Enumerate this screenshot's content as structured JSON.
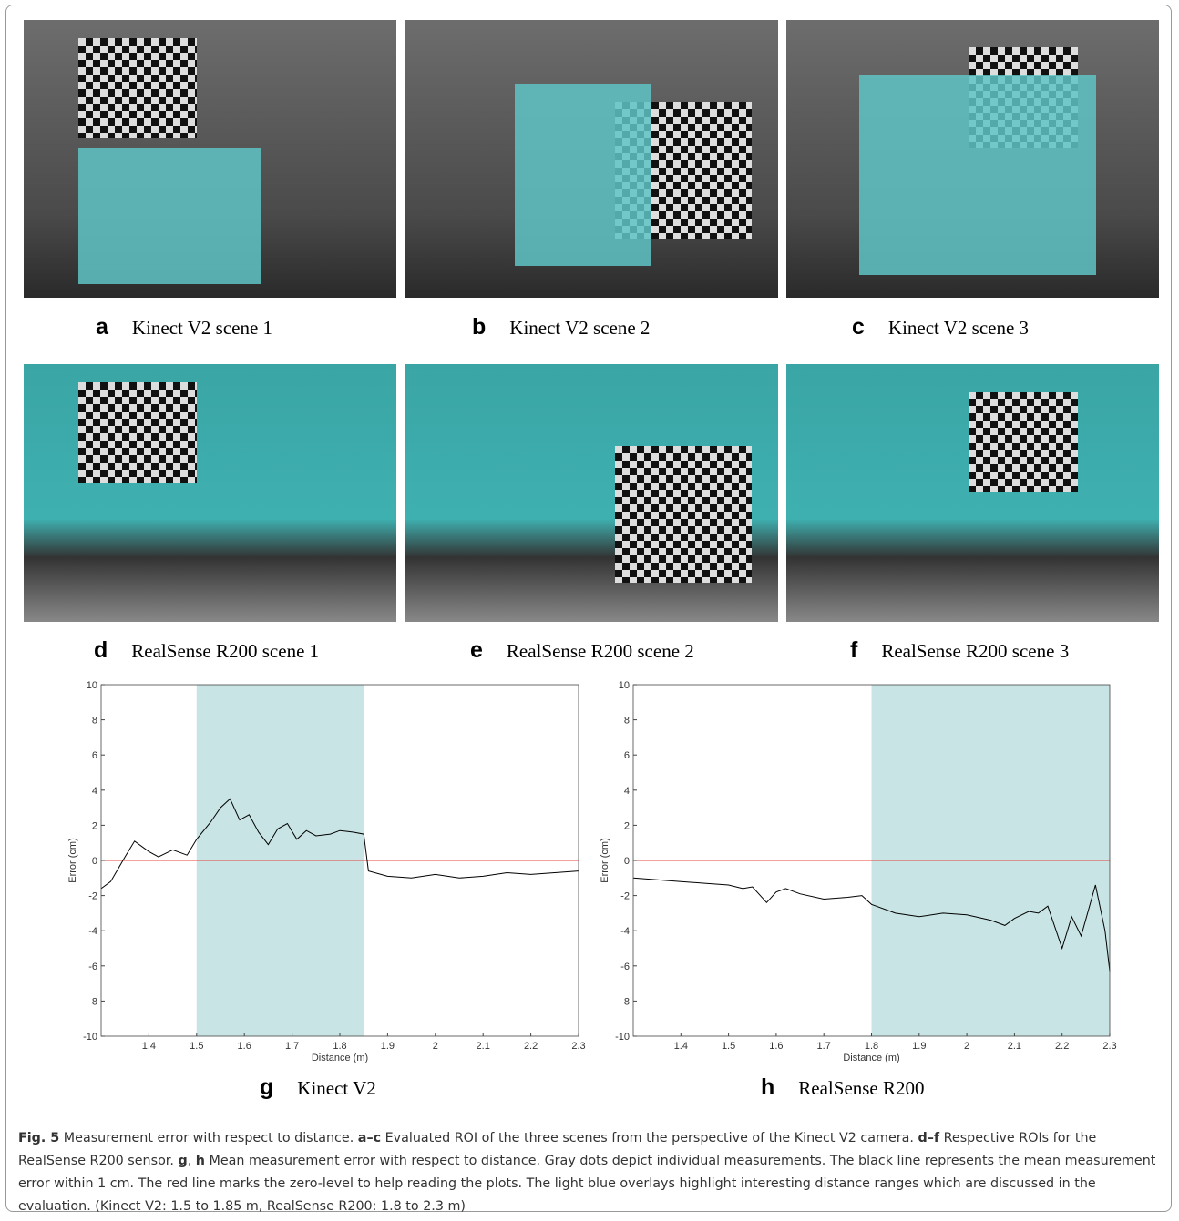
{
  "panels": [
    {
      "letter": "a",
      "label": "Kinect V2 scene 1"
    },
    {
      "letter": "b",
      "label": "Kinect V2 scene 2"
    },
    {
      "letter": "c",
      "label": "Kinect V2 scene 3"
    },
    {
      "letter": "d",
      "label": "RealSense R200 scene 1"
    },
    {
      "letter": "e",
      "label": "RealSense R200 scene 2"
    },
    {
      "letter": "f",
      "label": "RealSense R200 scene 3"
    },
    {
      "letter": "g",
      "label": "Kinect V2"
    },
    {
      "letter": "h",
      "label": "RealSense R200"
    }
  ],
  "chart_data": [
    {
      "type": "line",
      "x_label": "Distance (m)",
      "y_label": "Error (cm)",
      "color": "#000000",
      "x": [
        1.3,
        1.32,
        1.35,
        1.37,
        1.4,
        1.42,
        1.45,
        1.48,
        1.5,
        1.53,
        1.55,
        1.57,
        1.59,
        1.61,
        1.63,
        1.65,
        1.67,
        1.69,
        1.71,
        1.73,
        1.75,
        1.78,
        1.8,
        1.83,
        1.85,
        1.86,
        1.9,
        1.95,
        2.0,
        2.05,
        2.1,
        2.15,
        2.2,
        2.25,
        2.3
      ],
      "values": [
        -1.6,
        -1.2,
        0.2,
        1.1,
        0.5,
        0.2,
        0.6,
        0.3,
        1.2,
        2.2,
        3.0,
        3.5,
        2.3,
        2.6,
        1.6,
        0.9,
        1.8,
        2.1,
        1.2,
        1.7,
        1.4,
        1.5,
        1.7,
        1.6,
        1.5,
        -0.6,
        -0.9,
        -1.0,
        -0.8,
        -1.0,
        -0.9,
        -0.7,
        -0.8,
        -0.7,
        -0.6
      ],
      "xlim": [
        1.3,
        2.3
      ],
      "ylim": [
        -10,
        10
      ],
      "xticks": [
        1.4,
        1.5,
        1.6,
        1.7,
        1.8,
        1.9,
        2,
        2.1,
        2.2,
        2.3
      ],
      "yticks": [
        -10,
        -8,
        -6,
        -4,
        -2,
        0,
        2,
        4,
        6,
        8,
        10
      ],
      "highlight": [
        1.5,
        1.85
      ],
      "highlight_color": "#c8e4e4",
      "zero_line": 0,
      "zero_line_color": "#e8403a"
    },
    {
      "type": "line",
      "x_label": "Distance (m)",
      "y_label": "Error (cm)",
      "color": "#000000",
      "x": [
        1.3,
        1.35,
        1.4,
        1.45,
        1.5,
        1.53,
        1.55,
        1.58,
        1.6,
        1.62,
        1.65,
        1.7,
        1.75,
        1.78,
        1.8,
        1.85,
        1.9,
        1.95,
        2.0,
        2.05,
        2.08,
        2.1,
        2.13,
        2.15,
        2.17,
        2.2,
        2.22,
        2.24,
        2.27,
        2.29,
        2.3
      ],
      "values": [
        -1.0,
        -1.1,
        -1.2,
        -1.3,
        -1.4,
        -1.6,
        -1.5,
        -2.4,
        -1.8,
        -1.6,
        -1.9,
        -2.2,
        -2.1,
        -2.0,
        -2.5,
        -3.0,
        -3.2,
        -3.0,
        -3.1,
        -3.4,
        -3.7,
        -3.3,
        -2.9,
        -3.0,
        -2.6,
        -5.0,
        -3.2,
        -4.3,
        -1.4,
        -4.0,
        -6.3
      ],
      "xlim": [
        1.3,
        2.3
      ],
      "ylim": [
        -10,
        10
      ],
      "xticks": [
        1.4,
        1.5,
        1.6,
        1.7,
        1.8,
        1.9,
        2,
        2.1,
        2.2,
        2.3
      ],
      "yticks": [
        -10,
        -8,
        -6,
        -4,
        -2,
        0,
        2,
        4,
        6,
        8,
        10
      ],
      "highlight": [
        1.8,
        2.3
      ],
      "highlight_color": "#c8e4e4",
      "zero_line": 0,
      "zero_line_color": "#e8403a"
    }
  ],
  "caption": [
    {
      "text": "Fig. 5",
      "bold": true
    },
    {
      "text": " Measurement error with respect to distance. ",
      "bold": false
    },
    {
      "text": "a–c",
      "bold": true
    },
    {
      "text": " Evaluated ROI of the three scenes from the perspective of the Kinect V2 camera. ",
      "bold": false
    },
    {
      "text": "d–f",
      "bold": true
    },
    {
      "text": " Respective ROIs for the RealSense R200 sensor. ",
      "bold": false
    },
    {
      "text": "g",
      "bold": true
    },
    {
      "text": ", ",
      "bold": false
    },
    {
      "text": "h",
      "bold": true
    },
    {
      "text": " Mean measurement error with respect to distance. Gray dots depict individual measurements. The black line represents the mean measurement error within 1 cm. The red line marks the zero-level to help reading the plots. The light blue overlays highlight interesting distance ranges which are discussed in the evaluation. (Kinect V2: 1.5 to 1.85 m, RealSense R200: 1.8 to 2.3 m)",
      "bold": false
    }
  ]
}
